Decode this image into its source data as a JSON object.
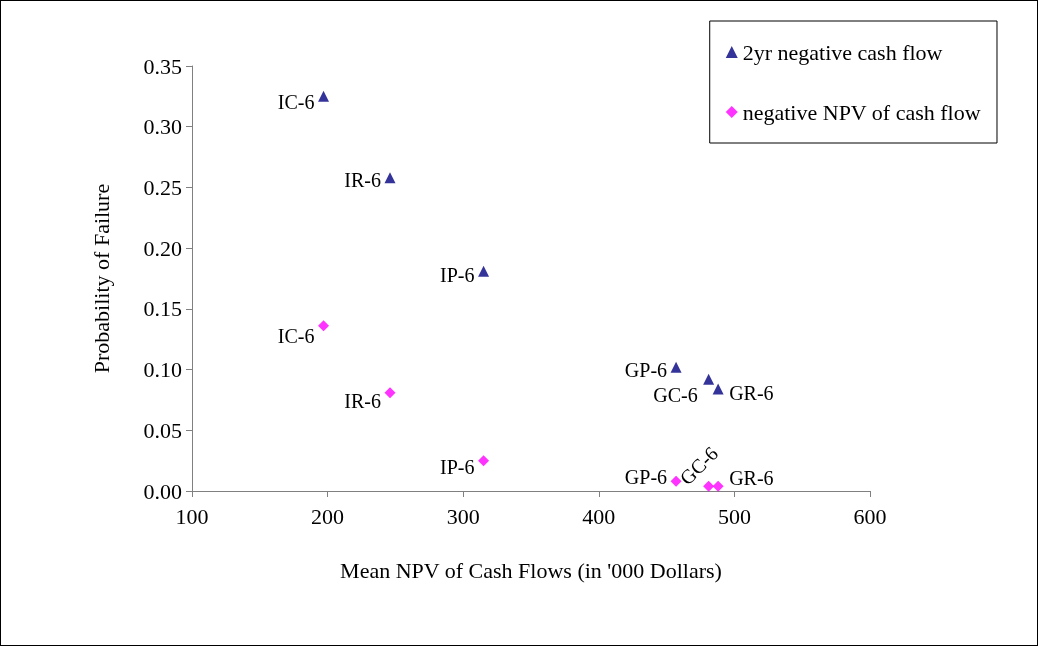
{
  "chart_data": {
    "type": "scatter",
    "xlabel": "Mean NPV of Cash Flows (in '000 Dollars)",
    "ylabel": "Probability of Failure",
    "xlim": [
      100,
      600
    ],
    "xticks": [
      100,
      200,
      300,
      400,
      500,
      600
    ],
    "ylim": [
      0,
      0.35
    ],
    "yticks": [
      {
        "value": 0,
        "label": "0.00"
      },
      {
        "value": 0.05,
        "label": "0.05"
      },
      {
        "value": 0.1,
        "label": "0.10"
      },
      {
        "value": 0.15,
        "label": "0.15"
      },
      {
        "value": 0.2,
        "label": "0.20"
      },
      {
        "value": 0.25,
        "label": "0.25"
      },
      {
        "value": 0.3,
        "label": "0.30"
      },
      {
        "value": 0.35,
        "label": "0.35"
      }
    ],
    "grid": false,
    "legend": "top right",
    "series": [
      {
        "name": "2yr negative cash flow",
        "color": "#000080",
        "marker": "triangle",
        "x": [
          197,
          246,
          315,
          457,
          481,
          488
        ],
        "values": [
          0.325,
          0.258,
          0.181,
          0.102,
          0.092,
          0.084
        ]
      },
      {
        "name": "negative NPV of cash flow",
        "color": "#ff00ff",
        "marker": "diamond",
        "x": [
          197,
          246,
          315,
          457,
          481,
          488
        ],
        "values": [
          0.136,
          0.081,
          0.025,
          0.008,
          0.004,
          0.004
        ]
      }
    ],
    "annotations": [
      {
        "text": "IC-6",
        "x": 197,
        "y": 0.325
      },
      {
        "text": "IR-6",
        "x": 246,
        "y": 0.258
      },
      {
        "text": "IP-6",
        "x": 315,
        "y": 0.181
      },
      {
        "text": "GP-6",
        "x": 457,
        "y": 0.102
      },
      {
        "text": "GC-6",
        "x": 481,
        "y": 0.092
      },
      {
        "text": "GR-6",
        "x": 488,
        "y": 0.084
      },
      {
        "text": "IC-6",
        "x": 197,
        "y": 0.136
      },
      {
        "text": "IR-6",
        "x": 246,
        "y": 0.081
      },
      {
        "text": "IP-6",
        "x": 315,
        "y": 0.025
      },
      {
        "text": "GP-6",
        "x": 457,
        "y": 0.008
      },
      {
        "text": "GC-6",
        "x": 481,
        "y": 0.004
      },
      {
        "text": "GR-6",
        "x": 488,
        "y": 0.004
      }
    ]
  }
}
